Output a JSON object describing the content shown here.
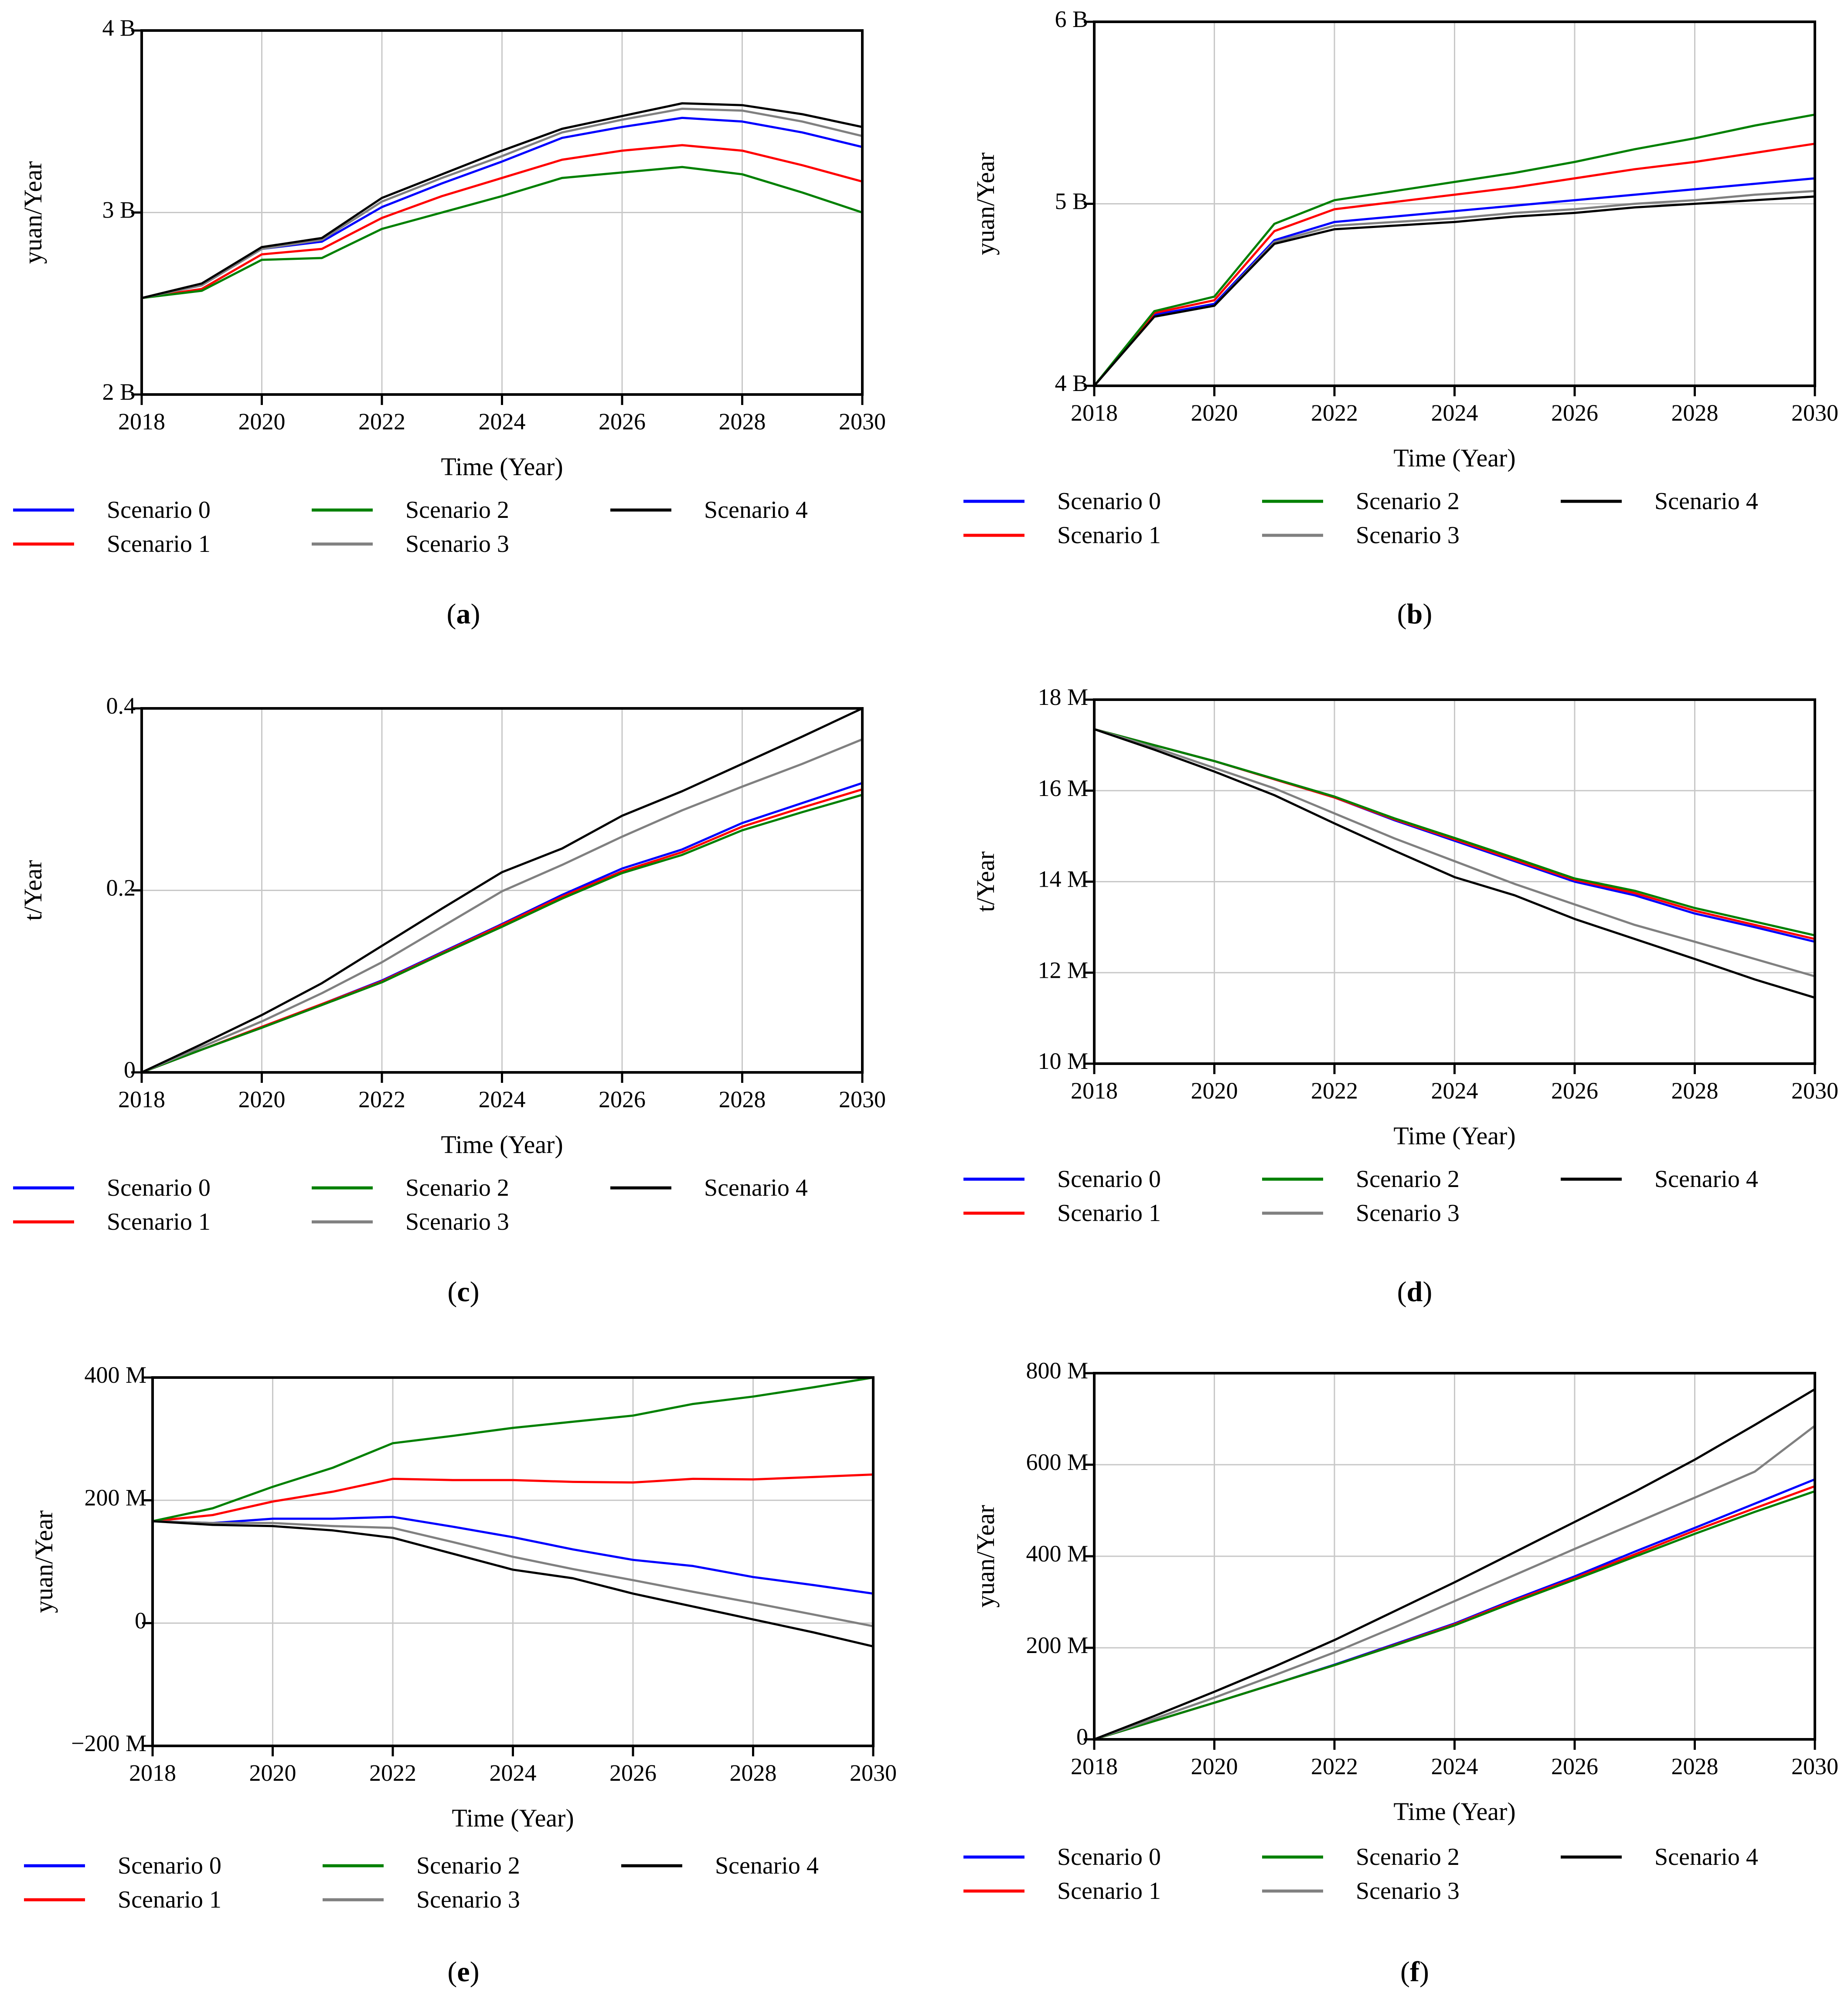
{
  "figure": {
    "background": "#ffffff"
  },
  "legend_entries": [
    {
      "name": "Scenario 0",
      "color": "#0000ff"
    },
    {
      "name": "Scenario 1",
      "color": "#ff0000"
    },
    {
      "name": "Scenario 2",
      "color": "#008000"
    },
    {
      "name": "Scenario 3",
      "color": "#808080"
    },
    {
      "name": "Scenario 4",
      "color": "#000000"
    }
  ],
  "chart_data": [
    {
      "panel_label": "a",
      "type": "line",
      "xlabel": "Time (Year)",
      "ylabel": "yuan/Year",
      "xlim": [
        2018,
        2030
      ],
      "xticks": [
        2018,
        2020,
        2022,
        2024,
        2026,
        2028,
        2030
      ],
      "ylim": [
        2,
        4
      ],
      "yticks": [
        {
          "value": 2,
          "label": "2 B"
        },
        {
          "value": 3,
          "label": "3 B"
        },
        {
          "value": 4,
          "label": "4 B"
        }
      ],
      "grid": true,
      "legend": "bottom",
      "x": [
        2018,
        2019,
        2020,
        2021,
        2022,
        2023,
        2024,
        2025,
        2026,
        2027,
        2028,
        2029,
        2030
      ],
      "series": [
        {
          "name": "Scenario 0",
          "values": [
            2.53,
            2.6,
            2.8,
            2.84,
            3.03,
            3.16,
            3.28,
            3.41,
            3.47,
            3.52,
            3.5,
            3.44,
            3.36
          ]
        },
        {
          "name": "Scenario 1",
          "values": [
            2.53,
            2.58,
            2.77,
            2.8,
            2.97,
            3.09,
            3.19,
            3.29,
            3.34,
            3.37,
            3.34,
            3.26,
            3.17
          ]
        },
        {
          "name": "Scenario 2",
          "values": [
            2.53,
            2.57,
            2.74,
            2.75,
            2.91,
            3.0,
            3.09,
            3.19,
            3.22,
            3.25,
            3.21,
            3.11,
            3.0
          ]
        },
        {
          "name": "Scenario 3",
          "values": [
            2.53,
            2.6,
            2.8,
            2.85,
            3.06,
            3.19,
            3.31,
            3.44,
            3.51,
            3.57,
            3.56,
            3.5,
            3.42
          ]
        },
        {
          "name": "Scenario 4",
          "values": [
            2.53,
            2.61,
            2.81,
            2.86,
            3.08,
            3.21,
            3.34,
            3.46,
            3.53,
            3.6,
            3.59,
            3.54,
            3.47
          ]
        }
      ]
    },
    {
      "panel_label": "b",
      "type": "line",
      "xlabel": "Time (Year)",
      "ylabel": "yuan/Year",
      "xlim": [
        2018,
        2030
      ],
      "xticks": [
        2018,
        2020,
        2022,
        2024,
        2026,
        2028,
        2030
      ],
      "ylim": [
        4,
        6
      ],
      "yticks": [
        {
          "value": 4,
          "label": "4 B"
        },
        {
          "value": 5,
          "label": "5 B"
        },
        {
          "value": 6,
          "label": "6 B"
        }
      ],
      "grid": true,
      "legend": "bottom",
      "x": [
        2018,
        2019,
        2020,
        2021,
        2022,
        2023,
        2024,
        2025,
        2026,
        2027,
        2028,
        2029,
        2030
      ],
      "series": [
        {
          "name": "Scenario 0",
          "values": [
            4.0,
            4.39,
            4.45,
            4.8,
            4.9,
            4.93,
            4.96,
            4.99,
            5.02,
            5.05,
            5.08,
            5.11,
            5.14
          ]
        },
        {
          "name": "Scenario 1",
          "values": [
            4.0,
            4.4,
            4.47,
            4.85,
            4.97,
            5.01,
            5.05,
            5.09,
            5.14,
            5.19,
            5.23,
            5.28,
            5.33
          ]
        },
        {
          "name": "Scenario 2",
          "values": [
            4.0,
            4.41,
            4.49,
            4.89,
            5.02,
            5.07,
            5.12,
            5.17,
            5.23,
            5.3,
            5.36,
            5.43,
            5.49
          ]
        },
        {
          "name": "Scenario 3",
          "values": [
            4.0,
            4.38,
            4.44,
            4.79,
            4.88,
            4.9,
            4.92,
            4.95,
            4.97,
            5.0,
            5.02,
            5.05,
            5.07
          ]
        },
        {
          "name": "Scenario 4",
          "values": [
            4.0,
            4.38,
            4.44,
            4.78,
            4.86,
            4.88,
            4.9,
            4.93,
            4.95,
            4.98,
            5.0,
            5.02,
            5.04
          ]
        }
      ]
    },
    {
      "panel_label": "c",
      "type": "line",
      "xlabel": "Time (Year)",
      "ylabel": "t/Year",
      "xlim": [
        2018,
        2030
      ],
      "xticks": [
        2018,
        2020,
        2022,
        2024,
        2026,
        2028,
        2030
      ],
      "ylim": [
        0,
        0.4
      ],
      "yticks": [
        {
          "value": 0,
          "label": "0"
        },
        {
          "value": 0.2,
          "label": "0.2"
        },
        {
          "value": 0.4,
          "label": "0.4"
        }
      ],
      "grid": true,
      "legend": "bottom",
      "x": [
        2018,
        2019,
        2020,
        2021,
        2022,
        2023,
        2024,
        2025,
        2026,
        2027,
        2028,
        2029,
        2030
      ],
      "series": [
        {
          "name": "Scenario 0",
          "values": [
            0,
            0.025,
            0.05,
            0.075,
            0.101,
            0.132,
            0.163,
            0.195,
            0.224,
            0.245,
            0.274,
            0.296,
            0.318
          ]
        },
        {
          "name": "Scenario 1",
          "values": [
            0,
            0.025,
            0.05,
            0.075,
            0.1,
            0.131,
            0.162,
            0.193,
            0.221,
            0.242,
            0.27,
            0.291,
            0.311
          ]
        },
        {
          "name": "Scenario 2",
          "values": [
            0,
            0.025,
            0.049,
            0.074,
            0.099,
            0.13,
            0.16,
            0.191,
            0.219,
            0.239,
            0.266,
            0.286,
            0.305
          ]
        },
        {
          "name": "Scenario 3",
          "values": [
            0,
            0.028,
            0.056,
            0.087,
            0.121,
            0.16,
            0.199,
            0.228,
            0.259,
            0.288,
            0.314,
            0.339,
            0.366
          ]
        },
        {
          "name": "Scenario 4",
          "values": [
            0,
            0.031,
            0.063,
            0.098,
            0.139,
            0.18,
            0.22,
            0.246,
            0.282,
            0.309,
            0.339,
            0.369,
            0.4
          ]
        }
      ]
    },
    {
      "panel_label": "d",
      "type": "line",
      "xlabel": "Time (Year)",
      "ylabel": "t/Year",
      "xlim": [
        2018,
        2030
      ],
      "xticks": [
        2018,
        2020,
        2022,
        2024,
        2026,
        2028,
        2030
      ],
      "ylim": [
        10,
        18
      ],
      "yticks": [
        {
          "value": 10,
          "label": "10 M"
        },
        {
          "value": 12,
          "label": "12 M"
        },
        {
          "value": 14,
          "label": "14 M"
        },
        {
          "value": 16,
          "label": "16 M"
        },
        {
          "value": 18,
          "label": "18 M"
        }
      ],
      "grid": true,
      "legend": "bottom",
      "x": [
        2018,
        2019,
        2020,
        2021,
        2022,
        2023,
        2024,
        2025,
        2026,
        2027,
        2028,
        2029,
        2030
      ],
      "series": [
        {
          "name": "Scenario 0",
          "values": [
            17.35,
            17.0,
            16.65,
            16.25,
            15.85,
            15.35,
            14.9,
            14.45,
            14.0,
            13.7,
            13.3,
            13.0,
            12.68
          ]
        },
        {
          "name": "Scenario 1",
          "values": [
            17.35,
            17.0,
            16.65,
            16.25,
            15.85,
            15.37,
            14.93,
            14.48,
            14.04,
            13.75,
            13.36,
            13.05,
            12.74
          ]
        },
        {
          "name": "Scenario 2",
          "values": [
            17.35,
            17.0,
            16.65,
            16.26,
            15.87,
            15.39,
            14.96,
            14.52,
            14.07,
            13.8,
            13.42,
            13.12,
            12.82
          ]
        },
        {
          "name": "Scenario 3",
          "values": [
            17.35,
            16.95,
            16.5,
            16.05,
            15.5,
            14.95,
            14.45,
            13.95,
            13.5,
            13.05,
            12.68,
            12.3,
            11.92
          ]
        },
        {
          "name": "Scenario 4",
          "values": [
            17.35,
            16.9,
            16.42,
            15.9,
            15.28,
            14.68,
            14.1,
            13.7,
            13.18,
            12.74,
            12.3,
            11.85,
            11.45
          ]
        }
      ]
    },
    {
      "panel_label": "e",
      "type": "line",
      "xlabel": "Time (Year)",
      "ylabel": "yuan/Year",
      "xlim": [
        2018,
        2030
      ],
      "xticks": [
        2018,
        2020,
        2022,
        2024,
        2026,
        2028,
        2030
      ],
      "ylim": [
        -200,
        400
      ],
      "yticks": [
        {
          "value": -200,
          "label": "−200 M"
        },
        {
          "value": 0,
          "label": "0"
        },
        {
          "value": 200,
          "label": "200 M"
        },
        {
          "value": 400,
          "label": "400 M"
        }
      ],
      "grid": true,
      "legend": "bottom",
      "x": [
        2018,
        2019,
        2020,
        2021,
        2022,
        2023,
        2024,
        2025,
        2026,
        2027,
        2028,
        2029,
        2030
      ],
      "series": [
        {
          "name": "Scenario 0",
          "values": [
            166,
            163,
            170,
            170,
            173,
            157,
            140,
            120,
            103,
            93,
            75,
            62,
            48
          ]
        },
        {
          "name": "Scenario 1",
          "values": [
            166,
            176,
            198,
            214,
            235,
            233,
            233,
            230,
            229,
            235,
            234,
            238,
            242
          ]
        },
        {
          "name": "Scenario 2",
          "values": [
            166,
            187,
            222,
            253,
            293,
            305,
            318,
            328,
            338,
            357,
            369,
            384,
            400
          ]
        },
        {
          "name": "Scenario 3",
          "values": [
            166,
            163,
            163,
            158,
            155,
            132,
            108,
            88,
            70,
            51,
            33,
            14,
            -5
          ]
        },
        {
          "name": "Scenario 4",
          "values": [
            166,
            160,
            158,
            151,
            139,
            113,
            87,
            73,
            48,
            27,
            6,
            -15,
            -38
          ]
        }
      ]
    },
    {
      "panel_label": "f",
      "type": "line",
      "xlabel": "Time (Year)",
      "ylabel": "yuan/Year",
      "xlim": [
        2018,
        2030
      ],
      "xticks": [
        2018,
        2020,
        2022,
        2024,
        2026,
        2028,
        2030
      ],
      "ylim": [
        0,
        800
      ],
      "yticks": [
        {
          "value": 0,
          "label": "0"
        },
        {
          "value": 200,
          "label": "200 M"
        },
        {
          "value": 400,
          "label": "400 M"
        },
        {
          "value": 600,
          "label": "600 M"
        },
        {
          "value": 800,
          "label": "800 M"
        }
      ],
      "grid": true,
      "legend": "bottom",
      "x": [
        2018,
        2019,
        2020,
        2021,
        2022,
        2023,
        2024,
        2025,
        2026,
        2027,
        2028,
        2029,
        2030
      ],
      "series": [
        {
          "name": "Scenario 0",
          "values": [
            0,
            40,
            80,
            121,
            163,
            208,
            253,
            306,
            356,
            410,
            462,
            515,
            568
          ]
        },
        {
          "name": "Scenario 1",
          "values": [
            0,
            40,
            80,
            121,
            162,
            206,
            251,
            303,
            352,
            404,
            456,
            505,
            553
          ]
        },
        {
          "name": "Scenario 2",
          "values": [
            0,
            40,
            80,
            121,
            162,
            205,
            249,
            300,
            349,
            399,
            449,
            497,
            542
          ]
        },
        {
          "name": "Scenario 3",
          "values": [
            0,
            45,
            91,
            140,
            190,
            245,
            302,
            359,
            416,
            472,
            528,
            585,
            685
          ]
        },
        {
          "name": "Scenario 4",
          "values": [
            0,
            51,
            104,
            159,
            217,
            280,
            343,
            409,
            475,
            541,
            611,
            687,
            765
          ]
        }
      ]
    }
  ]
}
